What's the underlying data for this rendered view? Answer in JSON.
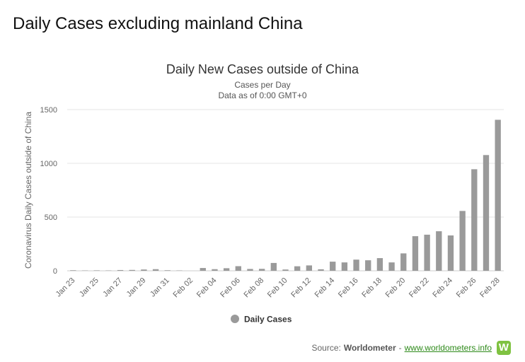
{
  "page": {
    "heading": "Daily Cases excluding mainland China"
  },
  "source": {
    "label": "Source:",
    "name": "Worldometer",
    "separator": "-",
    "link_text": "www.worldometers.info",
    "logo_letter": "W"
  },
  "colors": {
    "bar": "#9a9a9a",
    "grid": "#e6e6e6",
    "axis_text": "#666666",
    "title_text": "#333333",
    "link": "#2e8a1a",
    "logo": "#7fc241"
  },
  "chart_data": {
    "type": "bar",
    "title": "Daily New Cases outside of China",
    "subtitle_lines": [
      "Cases per Day",
      "Data as of 0:00 GMT+0"
    ],
    "ylabel": "Coronavirus Daily Cases outside of China",
    "xlabel": "",
    "ylim": [
      0,
      1500
    ],
    "yticks": [
      0,
      500,
      1000,
      1500
    ],
    "grid": true,
    "legend": {
      "position": "bottom-center",
      "entries": [
        "Daily Cases"
      ]
    },
    "series": [
      {
        "name": "Daily Cases",
        "values": [
          5,
          3,
          4,
          3,
          7,
          8,
          12,
          15,
          5,
          3,
          0,
          26,
          15,
          24,
          43,
          17,
          18,
          73,
          12,
          42,
          50,
          14,
          85,
          78,
          104,
          98,
          118,
          78,
          162,
          322,
          336,
          368,
          329,
          557,
          945,
          1077,
          1405
        ]
      }
    ],
    "categories": [
      "Jan 23",
      "Jan 24",
      "Jan 25",
      "Jan 26",
      "Jan 27",
      "Jan 28",
      "Jan 29",
      "Jan 30",
      "Jan 31",
      "Feb 01",
      "Feb 02",
      "Feb 03",
      "Feb 04",
      "Feb 05",
      "Feb 06",
      "Feb 07",
      "Feb 08",
      "Feb 09",
      "Feb 10",
      "Feb 11",
      "Feb 12",
      "Feb 13",
      "Feb 14",
      "Feb 15",
      "Feb 16",
      "Feb 17",
      "Feb 18",
      "Feb 19",
      "Feb 20",
      "Feb 21",
      "Feb 22",
      "Feb 23",
      "Feb 24",
      "Feb 25",
      "Feb 26",
      "Feb 27",
      "Feb 28"
    ],
    "xtick_labels": [
      "Jan 23",
      "Jan 25",
      "Jan 27",
      "Jan 29",
      "Jan 31",
      "Feb 02",
      "Feb 04",
      "Feb 06",
      "Feb 08",
      "Feb 10",
      "Feb 12",
      "Feb 14",
      "Feb 16",
      "Feb 18",
      "Feb 20",
      "Feb 22",
      "Feb 24",
      "Feb 26",
      "Feb 28"
    ]
  }
}
